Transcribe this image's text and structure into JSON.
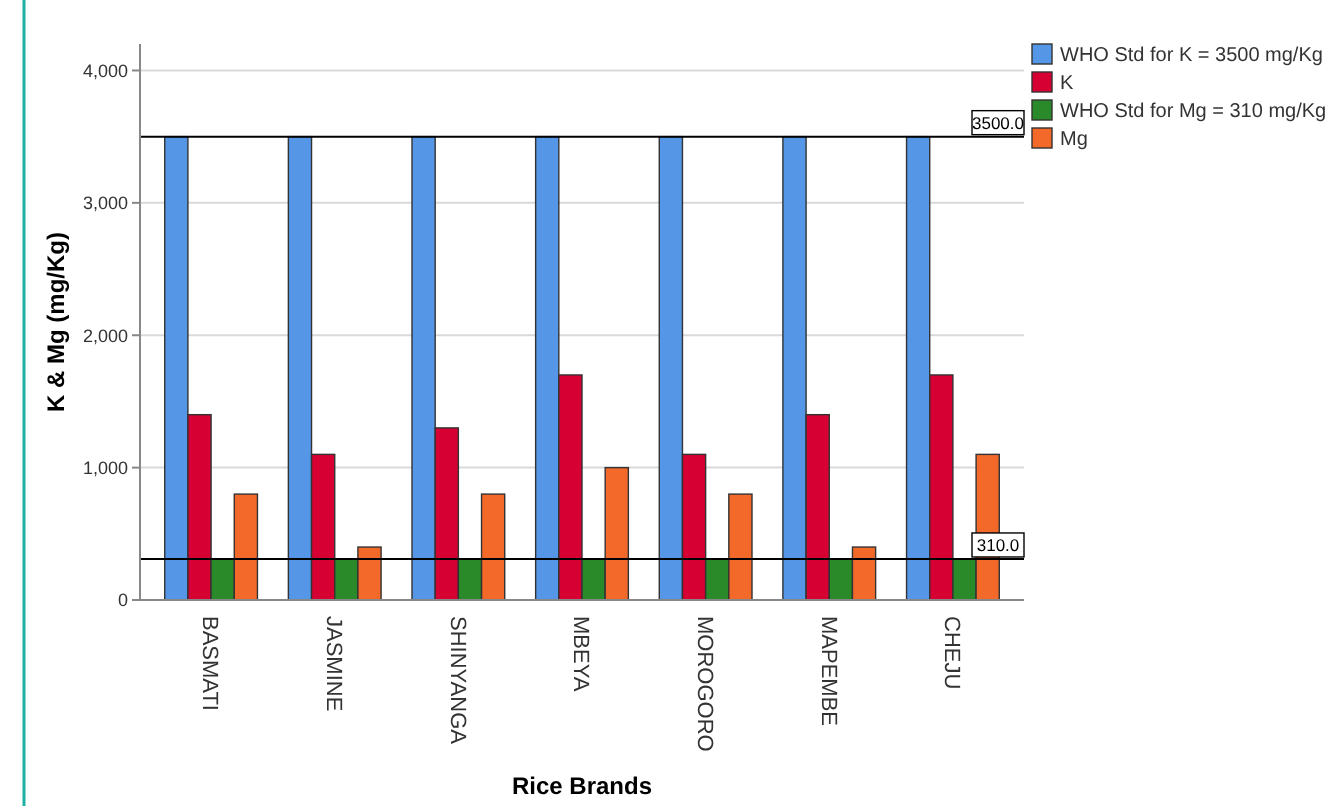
{
  "chart_data": {
    "type": "bar",
    "xlabel": "Rice Brands",
    "ylabel": "K & Mg (mg/Kg)",
    "categories": [
      "BASMATI",
      "JASMINE",
      "SHINYANGA",
      "MBEYA",
      "MOROGORO",
      "MAPEMBE",
      "CHEJU"
    ],
    "series": [
      {
        "name": "WHO Std for K = 3500 mg/Kg",
        "color": "#5596e6",
        "values": [
          3500,
          3500,
          3500,
          3500,
          3500,
          3500,
          3500
        ]
      },
      {
        "name": "K",
        "color": "#d70033",
        "values": [
          1400,
          1100,
          1300,
          1700,
          1100,
          1400,
          1700
        ]
      },
      {
        "name": "WHO Std for Mg = 310 mg/Kg",
        "color": "#2a8a2a",
        "values": [
          310,
          310,
          310,
          310,
          310,
          310,
          310
        ]
      },
      {
        "name": "Mg",
        "color": "#f2692a",
        "values": [
          800,
          400,
          800,
          1000,
          800,
          400,
          1100
        ]
      }
    ],
    "ylim": [
      0,
      4200
    ],
    "yticks": [
      {
        "value": 0,
        "label": "0"
      },
      {
        "value": 1000,
        "label": "1,000"
      },
      {
        "value": 2000,
        "label": "2,000"
      },
      {
        "value": 3000,
        "label": "3,000"
      },
      {
        "value": 4000,
        "label": "4,000"
      }
    ],
    "grid": "y",
    "legend": "top right",
    "ref_lines": [
      {
        "axis": "y",
        "value": 3500,
        "label": "3500.0",
        "color": "#000000"
      },
      {
        "axis": "y",
        "value": 310,
        "label": "310.0",
        "color": "#000000"
      }
    ]
  }
}
